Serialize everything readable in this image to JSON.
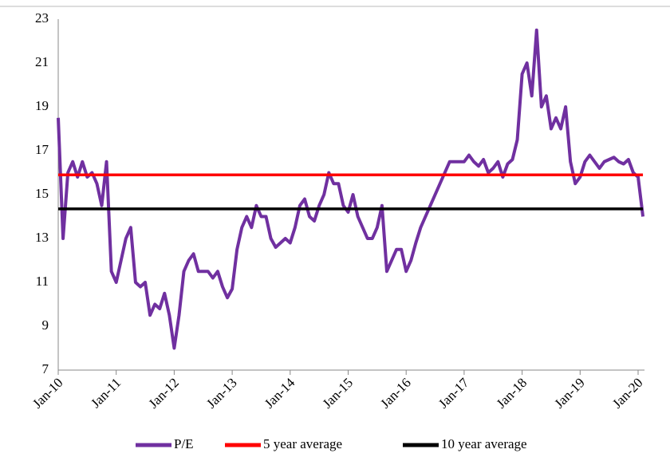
{
  "chart_data": {
    "type": "line",
    "categories": [
      "Jan-10",
      null,
      null,
      null,
      null,
      null,
      null,
      null,
      null,
      null,
      null,
      null,
      "Jan-11",
      null,
      null,
      null,
      null,
      null,
      null,
      null,
      null,
      null,
      null,
      null,
      "Jan-12",
      null,
      null,
      null,
      null,
      null,
      null,
      null,
      null,
      null,
      null,
      null,
      "Jan-13",
      null,
      null,
      null,
      null,
      null,
      null,
      null,
      null,
      null,
      null,
      null,
      "Jan-14",
      null,
      null,
      null,
      null,
      null,
      null,
      null,
      null,
      null,
      null,
      null,
      "Jan-15",
      null,
      null,
      null,
      null,
      null,
      null,
      null,
      null,
      null,
      null,
      null,
      "Jan-16",
      null,
      null,
      null,
      null,
      null,
      null,
      null,
      null,
      null,
      null,
      null,
      "Jan-17",
      null,
      null,
      null,
      null,
      null,
      null,
      null,
      null,
      null,
      null,
      null,
      "Jan-18",
      null,
      null,
      null,
      null,
      null,
      null,
      null,
      null,
      null,
      null,
      null,
      "Jan-19",
      null,
      null,
      null,
      null,
      null,
      null,
      null,
      null,
      null,
      null,
      null,
      "Jan-20",
      null
    ],
    "series": [
      {
        "name": "P/E",
        "color": "#7030a0",
        "values": [
          18.5,
          13,
          16,
          16.5,
          15.8,
          16.5,
          15.8,
          16,
          15.5,
          14.5,
          16.5,
          11.5,
          11,
          12,
          13,
          13.5,
          11,
          10.8,
          11,
          9.5,
          10,
          9.8,
          10.5,
          9.5,
          8,
          9.5,
          11.5,
          12,
          12.3,
          11.5,
          11.5,
          11.5,
          11.2,
          11.5,
          10.8,
          10.3,
          10.7,
          12.5,
          13.5,
          14,
          13.5,
          14.5,
          14,
          14,
          13,
          12.6,
          12.8,
          13,
          12.8,
          13.5,
          14.5,
          14.8,
          14,
          13.8,
          14.5,
          15,
          16,
          15.5,
          15.5,
          14.5,
          14.2,
          15,
          14,
          13.5,
          13,
          13,
          13.5,
          14.5,
          11.5,
          12,
          12.5,
          12.5,
          11.5,
          12,
          12.8,
          13.5,
          14,
          14.5,
          15,
          15.5,
          16,
          16.5,
          16.5,
          16.5,
          16.5,
          16.8,
          16.5,
          16.3,
          16.6,
          16,
          16.2,
          16.5,
          15.8,
          16.4,
          16.6,
          17.5,
          20.5,
          21,
          19.5,
          22.5,
          19,
          19.5,
          18,
          18.5,
          18,
          19,
          16.5,
          15.5,
          15.8,
          16.5,
          16.8,
          16.5,
          16.2,
          16.5,
          16.6,
          16.7,
          16.5,
          16.4,
          16.6,
          16,
          15.8,
          14
        ]
      },
      {
        "name": "5 year average",
        "color": "#ff0000",
        "values": [
          15.9,
          15.9,
          15.9,
          15.9,
          15.9,
          15.9,
          15.9,
          15.9,
          15.9,
          15.9,
          15.9,
          15.9,
          15.9,
          15.9,
          15.9,
          15.9,
          15.9,
          15.9,
          15.9,
          15.9,
          15.9,
          15.9,
          15.9,
          15.9,
          15.9,
          15.9,
          15.9,
          15.9,
          15.9,
          15.9,
          15.9,
          15.9,
          15.9,
          15.9,
          15.9,
          15.9,
          15.9,
          15.9,
          15.9,
          15.9,
          15.9,
          15.9,
          15.9,
          15.9,
          15.9,
          15.9,
          15.9,
          15.9,
          15.9,
          15.9,
          15.9,
          15.9,
          15.9,
          15.9,
          15.9,
          15.9,
          15.9,
          15.9,
          15.9,
          15.9,
          15.9,
          15.9,
          15.9,
          15.9,
          15.9,
          15.9,
          15.9,
          15.9,
          15.9,
          15.9,
          15.9,
          15.9,
          15.9,
          15.9,
          15.9,
          15.9,
          15.9,
          15.9,
          15.9,
          15.9,
          15.9,
          15.9,
          15.9,
          15.9,
          15.9,
          15.9,
          15.9,
          15.9,
          15.9,
          15.9,
          15.9,
          15.9,
          15.9,
          15.9,
          15.9,
          15.9,
          15.9,
          15.9,
          15.9,
          15.9,
          15.9,
          15.9,
          15.9,
          15.9,
          15.9,
          15.9,
          15.9,
          15.9,
          15.9,
          15.9,
          15.9,
          15.9,
          15.9,
          15.9,
          15.9,
          15.9,
          15.9,
          15.9,
          15.9,
          15.9,
          15.9,
          15.9
        ]
      },
      {
        "name": "10 year average",
        "color": "#000000",
        "values": [
          14.35,
          14.35,
          14.35,
          14.35,
          14.35,
          14.35,
          14.35,
          14.35,
          14.35,
          14.35,
          14.35,
          14.35,
          14.35,
          14.35,
          14.35,
          14.35,
          14.35,
          14.35,
          14.35,
          14.35,
          14.35,
          14.35,
          14.35,
          14.35,
          14.35,
          14.35,
          14.35,
          14.35,
          14.35,
          14.35,
          14.35,
          14.35,
          14.35,
          14.35,
          14.35,
          14.35,
          14.35,
          14.35,
          14.35,
          14.35,
          14.35,
          14.35,
          14.35,
          14.35,
          14.35,
          14.35,
          14.35,
          14.35,
          14.35,
          14.35,
          14.35,
          14.35,
          14.35,
          14.35,
          14.35,
          14.35,
          14.35,
          14.35,
          14.35,
          14.35,
          14.35,
          14.35,
          14.35,
          14.35,
          14.35,
          14.35,
          14.35,
          14.35,
          14.35,
          14.35,
          14.35,
          14.35,
          14.35,
          14.35,
          14.35,
          14.35,
          14.35,
          14.35,
          14.35,
          14.35,
          14.35,
          14.35,
          14.35,
          14.35,
          14.35,
          14.35,
          14.35,
          14.35,
          14.35,
          14.35,
          14.35,
          14.35,
          14.35,
          14.35,
          14.35,
          14.35,
          14.35,
          14.35,
          14.35,
          14.35,
          14.35,
          14.35,
          14.35,
          14.35,
          14.35,
          14.35,
          14.35,
          14.35,
          14.35,
          14.35,
          14.35,
          14.35,
          14.35,
          14.35,
          14.35,
          14.35,
          14.35,
          14.35,
          14.35,
          14.35,
          14.35,
          14.35
        ]
      }
    ],
    "ylim": [
      7,
      23
    ],
    "yticks": [
      7,
      9,
      11,
      13,
      15,
      17,
      19,
      21,
      23
    ],
    "grid": false,
    "legend": "bottom"
  }
}
